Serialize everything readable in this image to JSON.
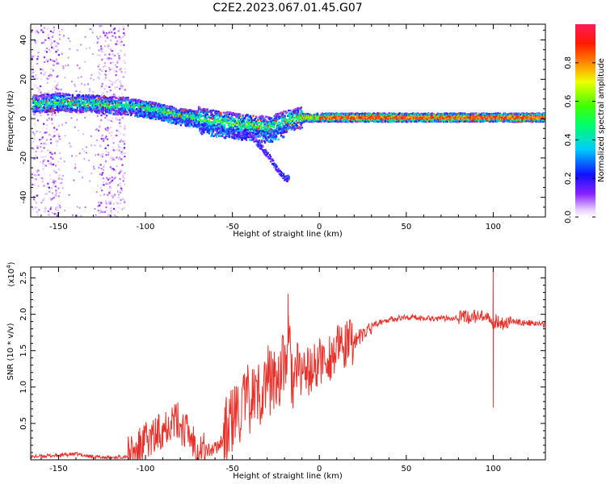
{
  "title": "C2E2.2023.067.01.45.G07",
  "colors": {
    "snr_line": "#e8312a",
    "axis": "#000000"
  },
  "chart_data": [
    {
      "type": "heatmap",
      "title": "C2E2.2023.067.01.45.G07",
      "xlabel": "Height of straight line (km)",
      "ylabel": "Frequency (Hz)",
      "xlim": [
        -166,
        130
      ],
      "ylim": [
        -50,
        48
      ],
      "xticks": [
        -150,
        -100,
        -50,
        0,
        50,
        100
      ],
      "xtick_labels": [
        "-150",
        "-100",
        "-50",
        "0",
        "50",
        "100"
      ],
      "yticks": [
        -40,
        -20,
        0,
        20,
        40
      ],
      "ytick_labels": [
        "-40",
        "-20",
        "0",
        "20",
        "40"
      ],
      "colorbar": {
        "label": "Normalized spectral amplitude",
        "range": [
          0,
          1
        ],
        "ticks": [
          0.0,
          0.2,
          0.4,
          0.6,
          0.8
        ],
        "tick_labels": [
          "0.0",
          "0.2",
          "0.4",
          "0.6",
          "0.8"
        ],
        "colormap": "rainbow (purple → blue → cyan → green → yellow → orange → red)"
      },
      "ridges": [
        {
          "name": "main-frequency-band",
          "x": [
            -160,
            -150,
            -140,
            -130,
            -120,
            -110,
            -100,
            -90,
            -80,
            -70,
            -60,
            -50,
            -40,
            -30,
            -20,
            -10,
            0,
            10,
            20,
            40,
            60,
            80,
            100,
            130
          ],
          "y": [
            8,
            9,
            8,
            8,
            7,
            7,
            6,
            4,
            2,
            1,
            -1,
            -2,
            -3,
            -4,
            -1,
            1,
            1,
            1,
            1,
            1,
            1,
            1,
            1,
            1
          ]
        },
        {
          "name": "secondary-descending-band",
          "x": [
            -40,
            -35,
            -30,
            -25,
            -20
          ],
          "y": [
            -8,
            -13,
            -18,
            -25,
            -30
          ]
        }
      ]
    },
    {
      "type": "line",
      "xlabel": "Height of straight line (km)",
      "ylabel": "SNR (10 * v/v)",
      "ylabel_multiplier": "(x10^4)",
      "xlim": [
        -166,
        130
      ],
      "ylim": [
        0,
        2.65
      ],
      "xticks": [
        -150,
        -100,
        -50,
        0,
        50,
        100
      ],
      "xtick_labels": [
        "-150",
        "-100",
        "-50",
        "0",
        "50",
        "100"
      ],
      "yticks": [
        0.5,
        1.0,
        1.5,
        2.0,
        2.5
      ],
      "ytick_labels": [
        "0.5",
        "1.0",
        "1.5",
        "2.0",
        "2.5"
      ],
      "series": [
        {
          "name": "SNR",
          "x": [
            -166,
            -160,
            -150,
            -140,
            -130,
            -120,
            -110,
            -105,
            -100,
            -95,
            -90,
            -85,
            -80,
            -75,
            -70,
            -65,
            -60,
            -55,
            -50,
            -45,
            -40,
            -35,
            -30,
            -25,
            -20,
            -18,
            -15,
            -10,
            -5,
            0,
            5,
            10,
            15,
            20,
            25,
            30,
            40,
            50,
            60,
            70,
            80,
            90,
            95,
            98,
            100,
            102,
            105,
            110,
            120,
            130
          ],
          "y": [
            0.04,
            0.05,
            0.06,
            0.08,
            0.04,
            0.03,
            0.05,
            0.12,
            0.25,
            0.3,
            0.45,
            0.55,
            0.5,
            0.35,
            0.2,
            0.12,
            0.15,
            0.3,
            0.55,
            0.7,
            0.85,
            0.9,
            1.1,
            1.1,
            1.3,
            1.6,
            1.05,
            1.25,
            1.2,
            1.35,
            1.4,
            1.5,
            1.55,
            1.65,
            1.7,
            1.85,
            1.93,
            1.96,
            1.95,
            1.94,
            1.96,
            1.97,
            1.95,
            1.9,
            1.88,
            1.92,
            1.88,
            1.9,
            1.88,
            1.86
          ]
        }
      ],
      "annotations": [
        {
          "x": -18,
          "y": 2.28,
          "label": ""
        },
        {
          "x": 100,
          "y": 2.65,
          "label": ""
        },
        {
          "x": 100,
          "y": 0.72,
          "label": ""
        }
      ]
    }
  ]
}
